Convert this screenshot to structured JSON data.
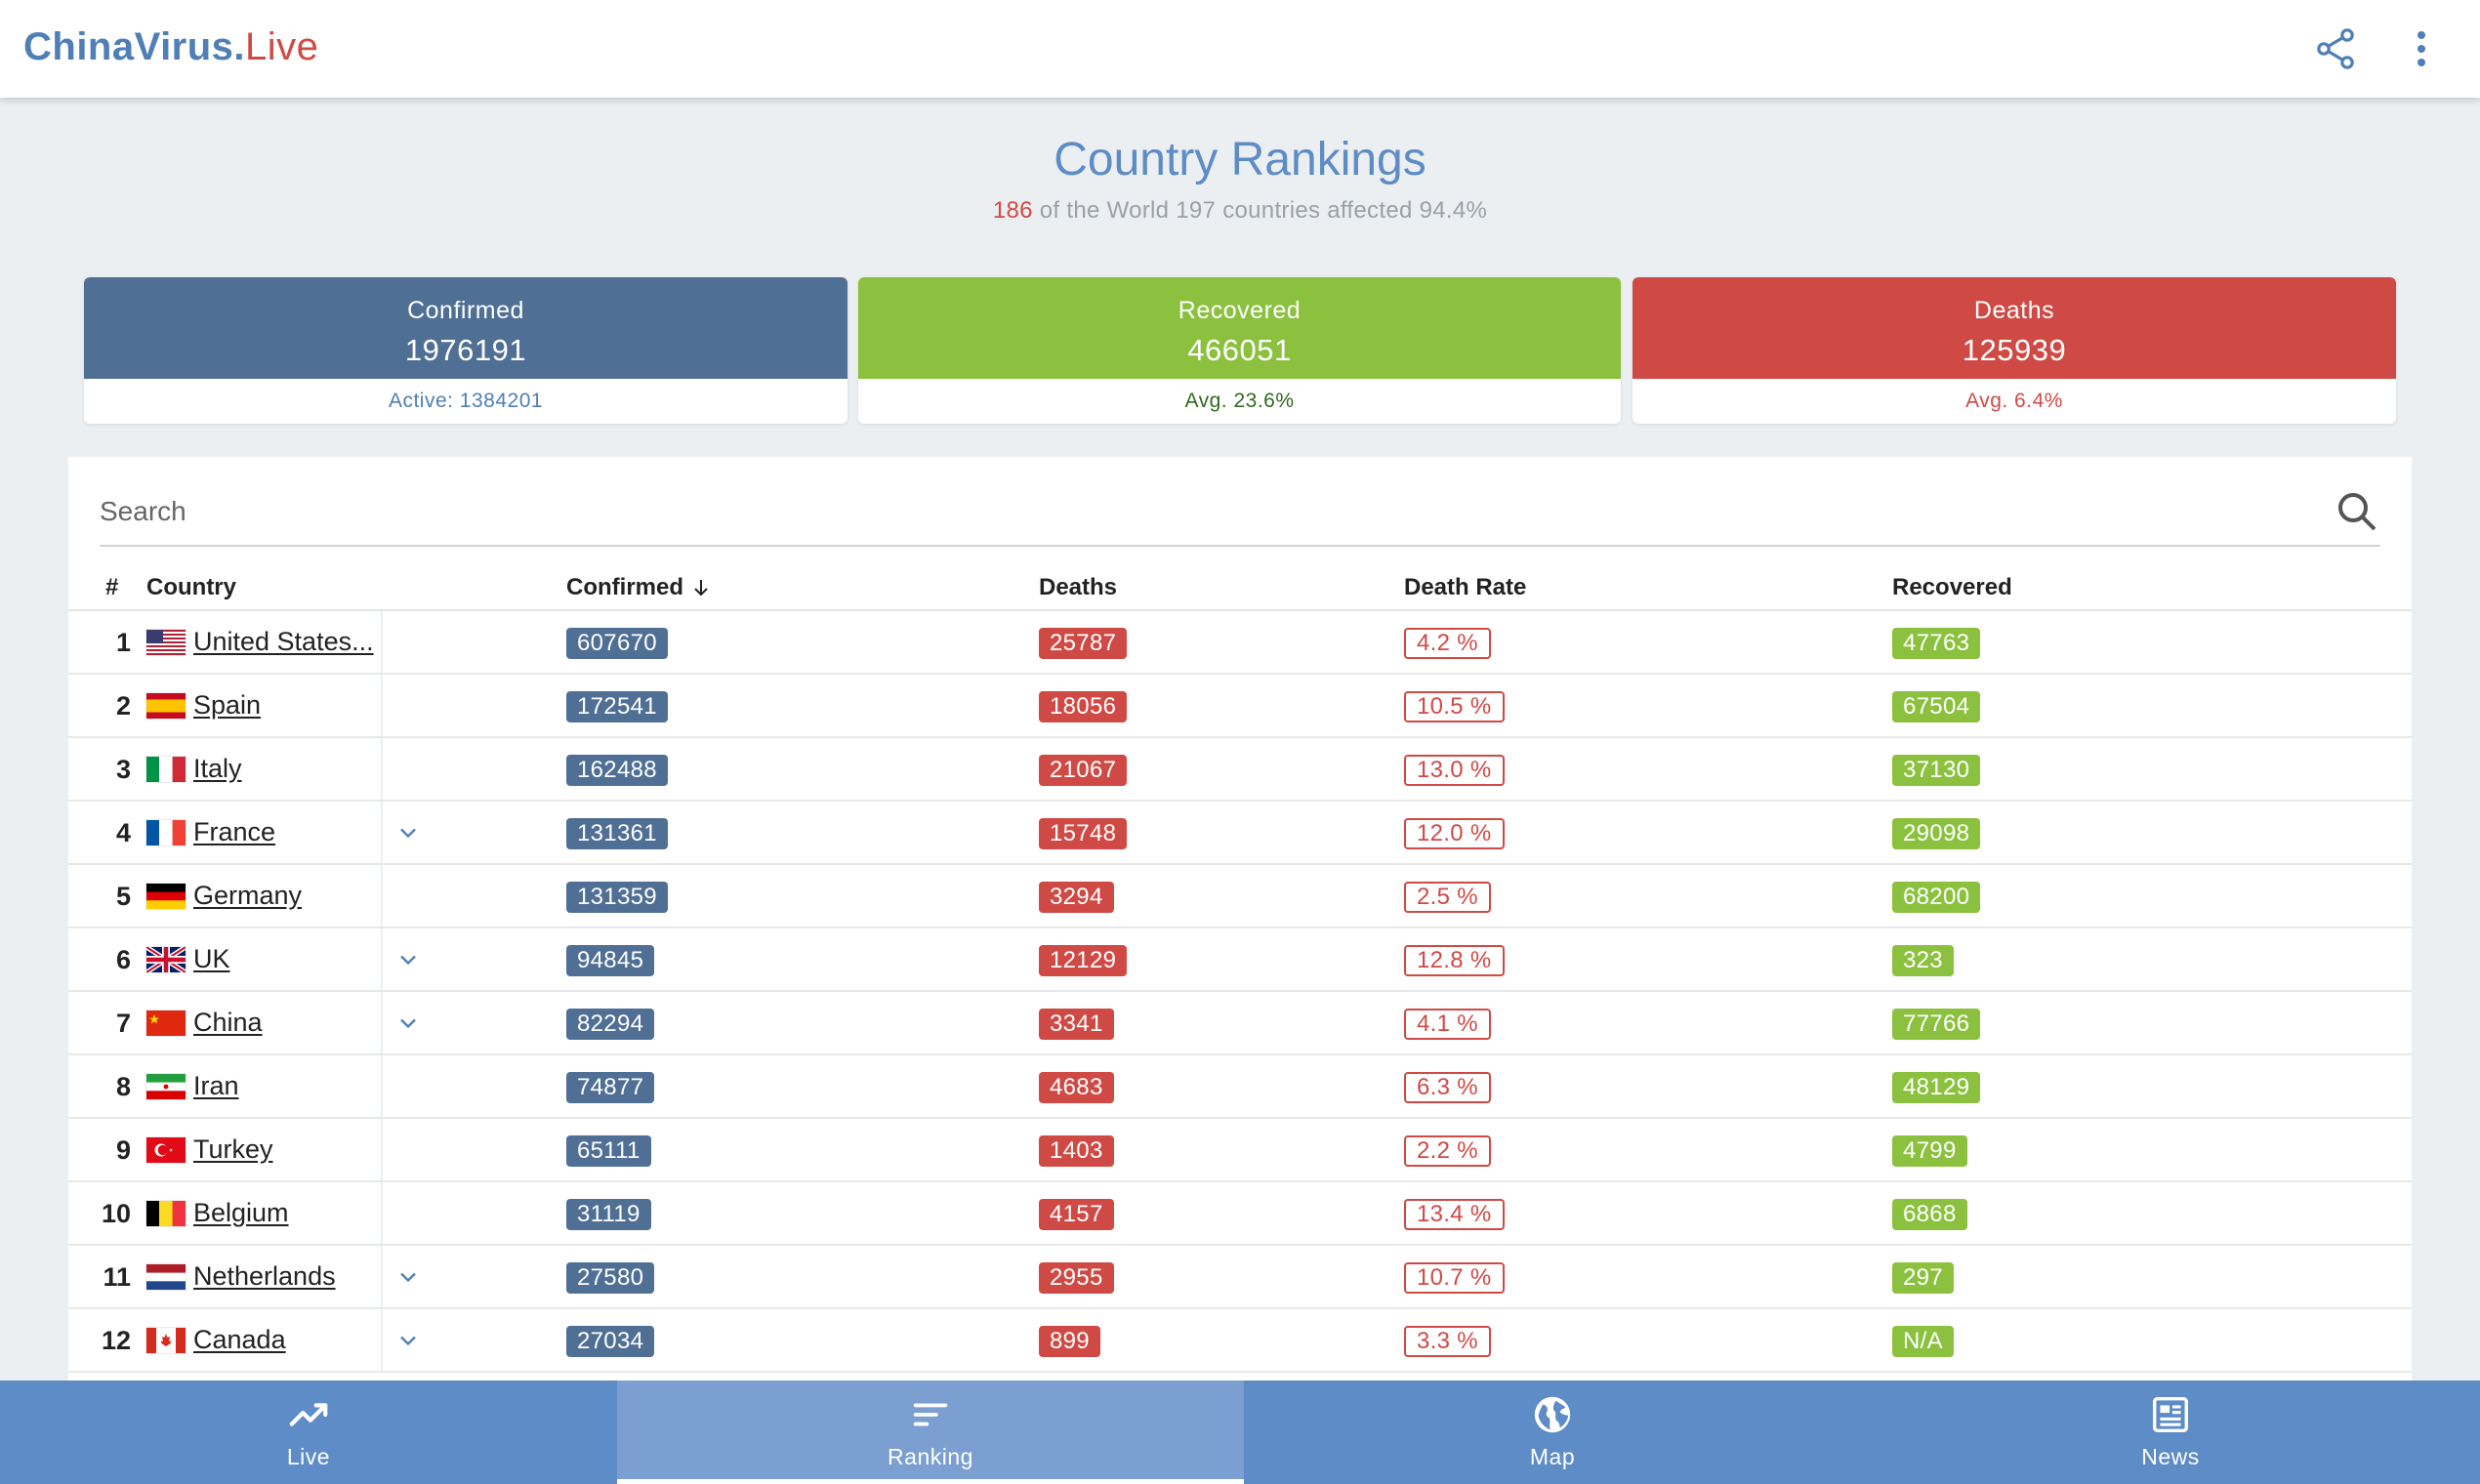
{
  "app": {
    "brand_main": "ChinaVirus.",
    "brand_suffix": "Live",
    "brand_colors": {
      "main": "#4f7fb6",
      "suffix": "#d04a44"
    },
    "top_icons": [
      "share-icon",
      "more-vert-icon"
    ]
  },
  "page": {
    "title": "Country Rankings",
    "subtitle_count": "186",
    "subtitle_text": " of the World 197 countries affected 94.4%"
  },
  "summary": {
    "confirmed": {
      "label": "Confirmed",
      "value": "1976191",
      "footer": "Active: 1384201",
      "color": "#4f6f95"
    },
    "recovered": {
      "label": "Recovered",
      "value": "466051",
      "footer": "Avg. 23.6%",
      "color": "#8cc13f"
    },
    "deaths": {
      "label": "Deaths",
      "value": "125939",
      "footer": "Avg. 6.4%",
      "color": "#cf4a45"
    }
  },
  "search": {
    "placeholder": "Search",
    "value": ""
  },
  "table": {
    "headers": {
      "num": "#",
      "country": "Country",
      "confirmed": "Confirmed",
      "deaths": "Deaths",
      "rate": "Death Rate",
      "recovered": "Recovered"
    },
    "sort": {
      "column": "confirmed",
      "direction": "desc"
    },
    "rows": [
      {
        "num": "1",
        "country": "United States...",
        "flag": "us",
        "expand": false,
        "confirmed": "607670",
        "deaths": "25787",
        "rate": "4.2 %",
        "recovered": "47763"
      },
      {
        "num": "2",
        "country": "Spain",
        "flag": "es",
        "expand": false,
        "confirmed": "172541",
        "deaths": "18056",
        "rate": "10.5 %",
        "recovered": "67504"
      },
      {
        "num": "3",
        "country": "Italy",
        "flag": "it",
        "expand": false,
        "confirmed": "162488",
        "deaths": "21067",
        "rate": "13.0 %",
        "recovered": "37130"
      },
      {
        "num": "4",
        "country": "France",
        "flag": "fr",
        "expand": true,
        "confirmed": "131361",
        "deaths": "15748",
        "rate": "12.0 %",
        "recovered": "29098"
      },
      {
        "num": "5",
        "country": "Germany",
        "flag": "de",
        "expand": false,
        "confirmed": "131359",
        "deaths": "3294",
        "rate": "2.5 %",
        "recovered": "68200"
      },
      {
        "num": "6",
        "country": "UK",
        "flag": "gb",
        "expand": true,
        "confirmed": "94845",
        "deaths": "12129",
        "rate": "12.8 %",
        "recovered": "323"
      },
      {
        "num": "7",
        "country": "China",
        "flag": "cn",
        "expand": true,
        "confirmed": "82294",
        "deaths": "3341",
        "rate": "4.1 %",
        "recovered": "77766"
      },
      {
        "num": "8",
        "country": "Iran",
        "flag": "ir",
        "expand": false,
        "confirmed": "74877",
        "deaths": "4683",
        "rate": "6.3 %",
        "recovered": "48129"
      },
      {
        "num": "9",
        "country": "Turkey",
        "flag": "tr",
        "expand": false,
        "confirmed": "65111",
        "deaths": "1403",
        "rate": "2.2 %",
        "recovered": "4799"
      },
      {
        "num": "10",
        "country": "Belgium",
        "flag": "be",
        "expand": false,
        "confirmed": "31119",
        "deaths": "4157",
        "rate": "13.4 %",
        "recovered": "6868"
      },
      {
        "num": "11",
        "country": "Netherlands",
        "flag": "nl",
        "expand": true,
        "confirmed": "27580",
        "deaths": "2955",
        "rate": "10.7 %",
        "recovered": "297"
      },
      {
        "num": "12",
        "country": "Canada",
        "flag": "ca",
        "expand": true,
        "confirmed": "27034",
        "deaths": "899",
        "rate": "3.3 %",
        "recovered": "N/A"
      }
    ]
  },
  "nav": {
    "active": "ranking",
    "tabs": [
      {
        "id": "live",
        "label": "Live",
        "icon": "trending-icon"
      },
      {
        "id": "ranking",
        "label": "Ranking",
        "icon": "sort-icon"
      },
      {
        "id": "map",
        "label": "Map",
        "icon": "globe-icon"
      },
      {
        "id": "news",
        "label": "News",
        "icon": "newspaper-icon"
      }
    ]
  }
}
